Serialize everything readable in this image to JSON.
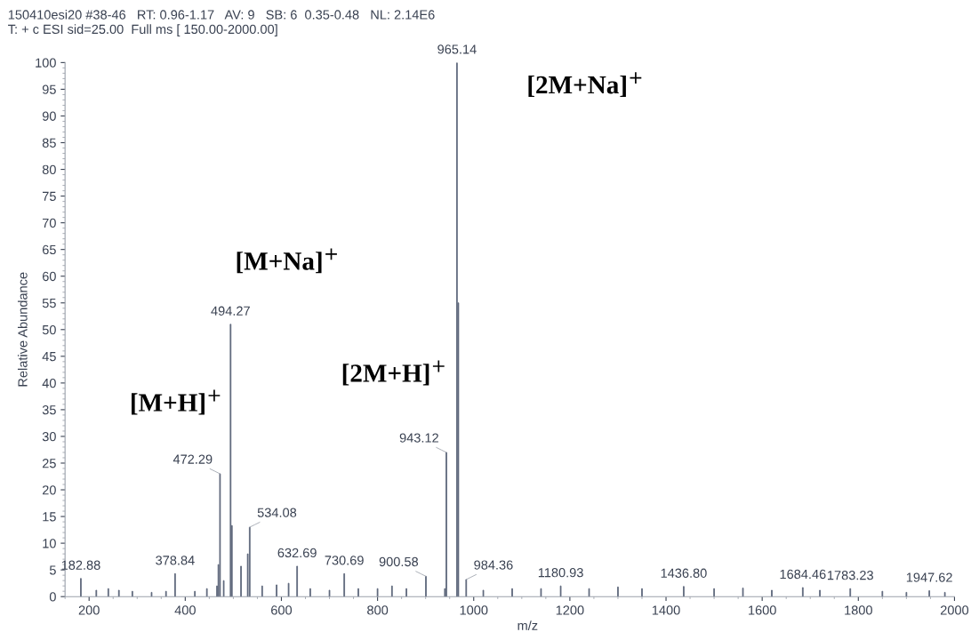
{
  "chart_data": {
    "type": "bar",
    "title": "150410esi20 #38-46   RT: 0.96-1.17   AV: 9   SB: 6  0.35-0.48   NL: 2.14E6",
    "subtitle": "T: + c ESI sid=25.00  Full ms [ 150.00-2000.00]",
    "xlabel": "m/z",
    "ylabel": "Relative Abundance",
    "x": [
      182.88,
      215,
      240,
      262,
      290,
      330,
      360,
      378.84,
      420,
      445,
      466,
      469,
      472.29,
      480,
      494.27,
      497,
      516,
      530,
      534.08,
      560,
      590,
      615,
      632.69,
      660,
      700,
      730.69,
      760,
      800,
      830,
      860,
      900.58,
      940,
      943.12,
      965.14,
      968,
      984.36,
      1020,
      1080,
      1140,
      1180.93,
      1240,
      1300,
      1350,
      1436.8,
      1500,
      1560,
      1620,
      1684.46,
      1720,
      1783.23,
      1850,
      1900,
      1947.62,
      1980
    ],
    "values": [
      3.4,
      1.2,
      1.5,
      1.2,
      1.0,
      0.8,
      1.0,
      4.3,
      1.0,
      1.5,
      2.0,
      6.0,
      23,
      3.0,
      51,
      13.3,
      5.7,
      8,
      13,
      2.0,
      2.2,
      2.5,
      5.7,
      1.5,
      1.2,
      4.3,
      1.5,
      1.5,
      2.0,
      1.5,
      3.8,
      1.5,
      27,
      100,
      55,
      3.2,
      1.2,
      1.5,
      1.5,
      2.0,
      1.5,
      1.8,
      1.5,
      1.9,
      1.5,
      1.6,
      1.2,
      1.7,
      1.2,
      1.5,
      1.0,
      0.8,
      1.1,
      0.8
    ],
    "color": "#5a6478",
    "xlim": [
      150,
      2000
    ],
    "xticks": [
      200,
      400,
      600,
      800,
      1000,
      1200,
      1400,
      1600,
      1800,
      2000
    ],
    "ylim": [
      0,
      100
    ],
    "yticks": [
      0,
      5,
      10,
      15,
      20,
      25,
      30,
      35,
      40,
      45,
      50,
      55,
      60,
      65,
      70,
      75,
      80,
      85,
      90,
      95,
      100
    ],
    "grid": false,
    "annotations": [
      {
        "text": "182.88",
        "x": 182.88,
        "y": 3.4
      },
      {
        "text": "378.84",
        "x": 378.84,
        "y": 4.3
      },
      {
        "text": "472.29",
        "x": 472.29,
        "y": 23
      },
      {
        "text": "494.27",
        "x": 494.27,
        "y": 51
      },
      {
        "text": "534.08",
        "x": 534.08,
        "y": 13
      },
      {
        "text": "632.69",
        "x": 632.69,
        "y": 5.7
      },
      {
        "text": "730.69",
        "x": 730.69,
        "y": 4.3
      },
      {
        "text": "900.58",
        "x": 900.58,
        "y": 3.8
      },
      {
        "text": "943.12",
        "x": 943.12,
        "y": 27
      },
      {
        "text": "965.14",
        "x": 965.14,
        "y": 100
      },
      {
        "text": "984.36",
        "x": 984.36,
        "y": 3.2
      },
      {
        "text": "1180.93",
        "x": 1180.93,
        "y": 2.0
      },
      {
        "text": "1436.80",
        "x": 1436.8,
        "y": 1.9
      },
      {
        "text": "1684.46",
        "x": 1684.46,
        "y": 1.7
      },
      {
        "text": "1783.23",
        "x": 1783.23,
        "y": 1.5
      },
      {
        "text": "1947.62",
        "x": 1947.62,
        "y": 1.1
      },
      "[M+H]$^{+}$",
      "[M+Na]$^{+}$",
      "[2M+H]$^{+}$",
      "[2M+Na]$^{+}$"
    ]
  }
}
